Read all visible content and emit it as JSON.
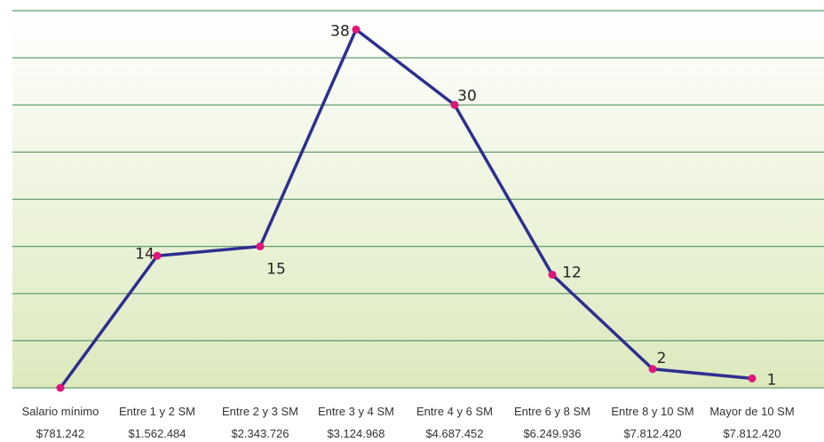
{
  "chart_data": {
    "type": "line",
    "categories": [
      [
        "Salario mínimo",
        "$781.242"
      ],
      [
        "Entre 1 y 2 SM",
        "$1.562.484"
      ],
      [
        "Entre 2 y 3 SM",
        "$2.343.726"
      ],
      [
        "Entre 3 y 4 SM",
        "$3.124.968"
      ],
      [
        "Entre 4 y 6 SM",
        "$4.687.452"
      ],
      [
        "Entre 6 y 8 SM",
        "$6.249.936"
      ],
      [
        "Entre 8 y 10 SM",
        "$7.812.420"
      ],
      [
        "Mayor de 10 SM",
        "$7.812.420"
      ]
    ],
    "values": [
      0,
      14,
      15,
      38,
      30,
      12,
      2,
      1
    ],
    "data_labels": [
      "",
      "14",
      "15",
      "38",
      "30",
      "12",
      "2",
      "1"
    ],
    "title": "",
    "xlabel": "",
    "ylabel": "",
    "ylim": [
      0,
      40
    ],
    "grid": true,
    "legend": "none",
    "colors": {
      "line": "#2e2f8f",
      "marker": "#e0157a",
      "grid": "#5f9e6e",
      "background_top": "#ffffff",
      "background_bottom": "#dce9bd"
    }
  }
}
